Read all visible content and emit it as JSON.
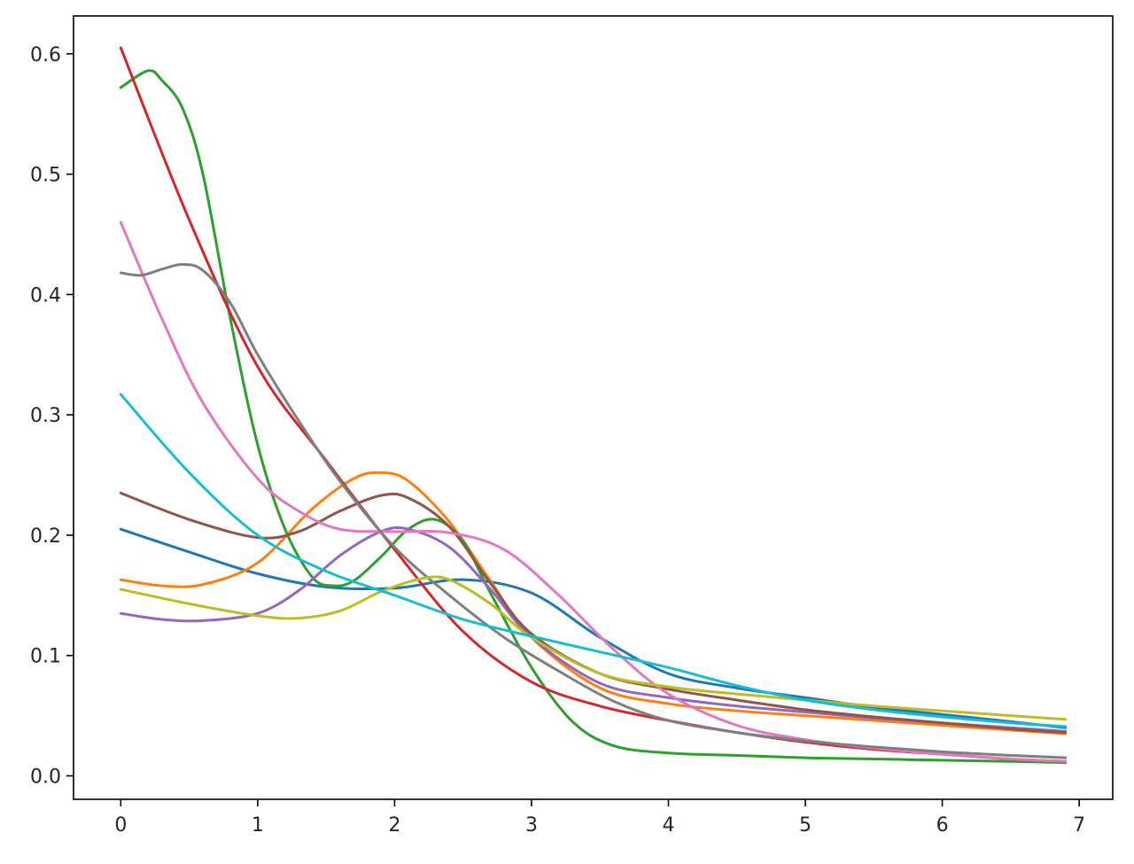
{
  "chart_data": {
    "type": "line",
    "title": "",
    "xlabel": "",
    "ylabel": "",
    "xlim": [
      -0.345,
      7.245
    ],
    "ylim": [
      -0.0195,
      0.6315
    ],
    "grid": false,
    "legend": "none",
    "x_ticks": [
      0,
      1,
      2,
      3,
      4,
      5,
      6,
      7
    ],
    "y_ticks": [
      0.0,
      0.1,
      0.2,
      0.3,
      0.4,
      0.5,
      0.6
    ],
    "x_tick_labels": [
      "0",
      "1",
      "2",
      "3",
      "4",
      "5",
      "6",
      "7"
    ],
    "y_tick_labels": [
      "0.0",
      "0.1",
      "0.2",
      "0.3",
      "0.4",
      "0.5",
      "0.6"
    ],
    "series": [
      {
        "color": "#1f77b4",
        "x": [
          0,
          0.5,
          1,
          1.5,
          2,
          2.5,
          3,
          3.5,
          4,
          4.5,
          5,
          5.5,
          6,
          6.5,
          6.9
        ],
        "y": [
          0.205,
          0.186,
          0.168,
          0.157,
          0.156,
          0.163,
          0.152,
          0.115,
          0.085,
          0.073,
          0.065,
          0.057,
          0.051,
          0.045,
          0.04
        ]
      },
      {
        "color": "#ff7f0e",
        "x": [
          0,
          0.3,
          0.6,
          1.0,
          1.4,
          1.7,
          1.9,
          2.1,
          2.4,
          2.7,
          3.0,
          3.5,
          4,
          4.5,
          5,
          5.5,
          6,
          6.5,
          6.9
        ],
        "y": [
          0.163,
          0.158,
          0.159,
          0.177,
          0.222,
          0.247,
          0.252,
          0.245,
          0.211,
          0.162,
          0.115,
          0.073,
          0.06,
          0.054,
          0.05,
          0.046,
          0.042,
          0.038,
          0.035
        ]
      },
      {
        "color": "#2ca02c",
        "x": [
          0,
          0.2,
          0.3,
          0.45,
          0.6,
          0.8,
          1.0,
          1.2,
          1.4,
          1.55,
          1.7,
          1.9,
          2.1,
          2.3,
          2.5,
          2.7,
          3.0,
          3.3,
          3.6,
          4.0,
          4.5,
          5,
          5.5,
          6,
          6.5,
          6.9
        ],
        "y": [
          0.572,
          0.586,
          0.578,
          0.555,
          0.5,
          0.38,
          0.275,
          0.205,
          0.165,
          0.158,
          0.162,
          0.182,
          0.205,
          0.213,
          0.195,
          0.152,
          0.09,
          0.045,
          0.025,
          0.019,
          0.017,
          0.015,
          0.014,
          0.013,
          0.012,
          0.011
        ]
      },
      {
        "color": "#d62728",
        "x": [
          0,
          0.5,
          1.0,
          1.5,
          2.0,
          2.5,
          3.0,
          3.5,
          4,
          4.5,
          5,
          5.5,
          6,
          6.5,
          6.9
        ],
        "y": [
          0.605,
          0.462,
          0.34,
          0.262,
          0.188,
          0.12,
          0.078,
          0.058,
          0.046,
          0.036,
          0.028,
          0.022,
          0.018,
          0.014,
          0.012
        ]
      },
      {
        "color": "#9467bd",
        "x": [
          0,
          0.3,
          0.6,
          1.0,
          1.3,
          1.6,
          1.9,
          2.1,
          2.4,
          2.7,
          3.0,
          3.5,
          4,
          4.5,
          5,
          5.5,
          6,
          6.5,
          6.9
        ],
        "y": [
          0.135,
          0.13,
          0.129,
          0.135,
          0.154,
          0.183,
          0.203,
          0.205,
          0.19,
          0.155,
          0.115,
          0.077,
          0.065,
          0.058,
          0.053,
          0.048,
          0.044,
          0.04,
          0.037
        ]
      },
      {
        "color": "#8c564b",
        "x": [
          0,
          0.5,
          1.0,
          1.3,
          1.6,
          1.9,
          2.1,
          2.4,
          2.7,
          3.0,
          3.5,
          4,
          4.5,
          5,
          5.5,
          6,
          6.5,
          6.9
        ],
        "y": [
          0.235,
          0.213,
          0.198,
          0.203,
          0.22,
          0.233,
          0.231,
          0.207,
          0.16,
          0.118,
          0.085,
          0.072,
          0.063,
          0.055,
          0.049,
          0.044,
          0.039,
          0.036
        ]
      },
      {
        "color": "#e377c2",
        "x": [
          0,
          0.3,
          0.6,
          1.0,
          1.3,
          1.6,
          2.0,
          2.4,
          2.8,
          3.2,
          3.6,
          4.0,
          4.5,
          5,
          5.5,
          6,
          6.5,
          6.9
        ],
        "y": [
          0.46,
          0.38,
          0.31,
          0.247,
          0.22,
          0.205,
          0.203,
          0.202,
          0.188,
          0.15,
          0.105,
          0.068,
          0.042,
          0.03,
          0.023,
          0.018,
          0.014,
          0.012
        ]
      },
      {
        "color": "#7f7f7f",
        "x": [
          0,
          0.15,
          0.3,
          0.45,
          0.6,
          0.8,
          1.0,
          1.3,
          1.6,
          2.0,
          2.4,
          2.8,
          3.2,
          3.6,
          4.0,
          4.5,
          5,
          5.5,
          6,
          6.5,
          6.9
        ],
        "y": [
          0.418,
          0.416,
          0.421,
          0.425,
          0.42,
          0.393,
          0.35,
          0.295,
          0.245,
          0.19,
          0.15,
          0.115,
          0.087,
          0.062,
          0.046,
          0.036,
          0.029,
          0.024,
          0.02,
          0.017,
          0.015
        ]
      },
      {
        "color": "#bcbd22",
        "x": [
          0,
          0.5,
          1.0,
          1.3,
          1.6,
          1.9,
          2.2,
          2.4,
          2.7,
          3.0,
          3.5,
          4,
          4.5,
          5,
          5.5,
          6,
          6.5,
          6.9
        ],
        "y": [
          0.155,
          0.143,
          0.133,
          0.131,
          0.137,
          0.153,
          0.164,
          0.163,
          0.143,
          0.115,
          0.085,
          0.074,
          0.068,
          0.063,
          0.058,
          0.054,
          0.05,
          0.047
        ]
      },
      {
        "color": "#17becf",
        "x": [
          0,
          0.5,
          1.0,
          1.5,
          2.0,
          2.5,
          3.0,
          3.5,
          4,
          4.5,
          5,
          5.5,
          6,
          6.5,
          6.9
        ],
        "y": [
          0.317,
          0.252,
          0.2,
          0.17,
          0.15,
          0.13,
          0.116,
          0.103,
          0.09,
          0.075,
          0.063,
          0.055,
          0.049,
          0.044,
          0.041
        ]
      }
    ]
  }
}
